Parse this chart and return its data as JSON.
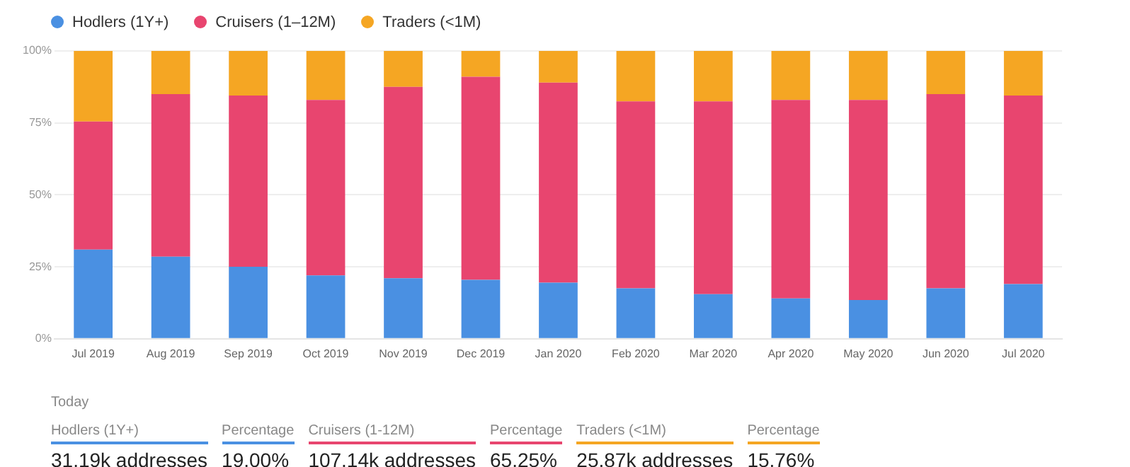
{
  "chart_data": {
    "type": "bar",
    "stacked": true,
    "categories": [
      "Jul 2019",
      "Aug 2019",
      "Sep 2019",
      "Oct 2019",
      "Nov 2019",
      "Dec 2019",
      "Jan 2020",
      "Feb 2020",
      "Mar 2020",
      "Apr 2020",
      "May 2020",
      "Jun 2020",
      "Jul 2020"
    ],
    "series": [
      {
        "name": "Hodlers (1Y+)",
        "color": "#4a90e2",
        "values": [
          31,
          28.5,
          25,
          22,
          21,
          20.5,
          19.5,
          17.5,
          15.5,
          14,
          13.5,
          17.5,
          19
        ]
      },
      {
        "name": "Cruisers (1–12M)",
        "color": "#e8456f",
        "values": [
          44.5,
          56.5,
          59.5,
          61,
          66.5,
          70.5,
          69.5,
          65,
          67,
          69,
          69.5,
          67.5,
          65.5
        ]
      },
      {
        "name": "Traders (<1M)",
        "color": "#f5a623",
        "values": [
          24.5,
          15,
          15.5,
          17,
          12.5,
          9,
          11,
          17.5,
          17.5,
          17,
          17,
          15,
          15.5
        ]
      }
    ],
    "ylim": [
      0,
      100
    ],
    "yticks": [
      {
        "value": 0,
        "label": "0%"
      },
      {
        "value": 25,
        "label": "25%"
      },
      {
        "value": 50,
        "label": "50%"
      },
      {
        "value": 75,
        "label": "75%"
      },
      {
        "value": 100,
        "label": "100%"
      }
    ],
    "grid": "y",
    "legend": "top left",
    "annotations": [
      "Today",
      "Hodlers (1Y+)",
      "31.19k addresses",
      "Percentage",
      "19.00%",
      "Cruisers (1-12M)",
      "107.14k addresses",
      "Percentage",
      "65.25%",
      "Traders (<1M)",
      "25.87k addresses",
      "Percentage",
      "15.76%"
    ]
  }
}
